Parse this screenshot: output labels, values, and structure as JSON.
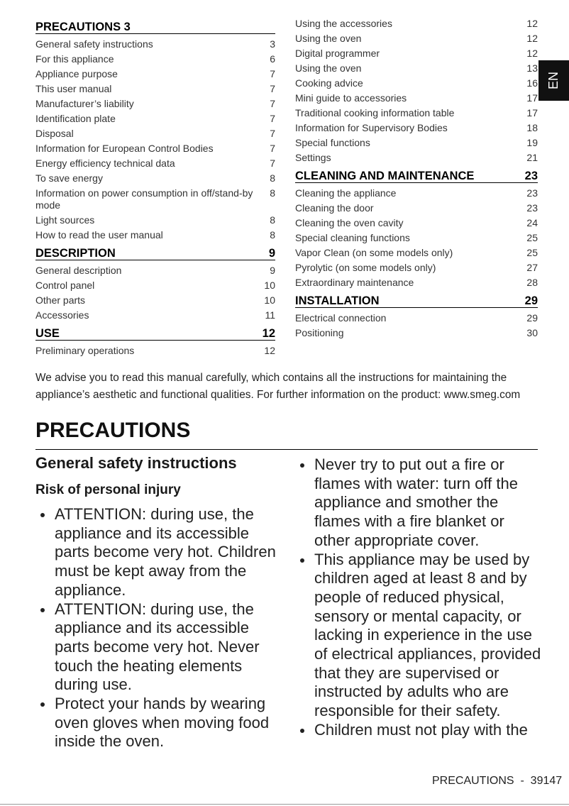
{
  "toc": {
    "columns": [
      {
        "items": [
          {
            "heading": "PRECAUTIONS 3"
          },
          {
            "text": "General safety instructions",
            "page": "3"
          },
          {
            "text": "For this appliance",
            "page": "6"
          },
          {
            "text": "Appliance purpose",
            "page": "7"
          },
          {
            "text": "This user manual",
            "page": "7"
          },
          {
            "text": "Manufacturer’s liability",
            "page": "7"
          },
          {
            "text": "Identification plate",
            "page": "7"
          },
          {
            "text": "Disposal",
            "page": "7"
          },
          {
            "text": "Information for European Control Bodies",
            "page": "7"
          },
          {
            "text": "Energy efficiency technical data",
            "page": "7"
          },
          {
            "text": "To save energy",
            "page": "8"
          },
          {
            "text": "Information on power consumption in off/stand-by mode",
            "page": "8"
          },
          {
            "text": "Light sources",
            "page": "8"
          },
          {
            "text": "How to read the user manual",
            "page": "8"
          },
          {
            "heading": "DESCRIPTION",
            "page": "9"
          },
          {
            "text": "General description",
            "page": "9"
          },
          {
            "text": "Control panel",
            "page": "10"
          },
          {
            "text": "Other parts",
            "page": "10"
          },
          {
            "text": "Accessories",
            "page": "11"
          },
          {
            "heading": "USE",
            "page": "12"
          },
          {
            "text": "Preliminary operations",
            "page": "12"
          }
        ]
      },
      {
        "items": [
          {
            "text": "Using the accessories",
            "page": "12"
          },
          {
            "text": "Using the oven",
            "page": "12"
          },
          {
            "text": "Digital programmer",
            "page": "12"
          },
          {
            "text": "Using the oven",
            "page": "13"
          },
          {
            "text": "Cooking advice",
            "page": "16"
          },
          {
            "text": "Mini guide to accessories",
            "page": "17"
          },
          {
            "text": "Traditional cooking information table",
            "page": "17"
          },
          {
            "text": "Information for Supervisory Bodies",
            "page": "18"
          },
          {
            "text": "Special functions",
            "page": "19"
          },
          {
            "text": "Settings",
            "page": "21"
          },
          {
            "heading": "CLEANING AND MAINTENANCE",
            "page": "23"
          },
          {
            "text": "Cleaning the appliance",
            "page": "23"
          },
          {
            "text": "Cleaning the door",
            "page": "23"
          },
          {
            "text": "Cleaning the oven cavity",
            "page": "24"
          },
          {
            "text": "Special cleaning functions",
            "page": "25"
          },
          {
            "text": "Vapor Clean (on some models only)",
            "page": "25"
          },
          {
            "text": "Pyrolytic (on some models only)",
            "page": "27"
          },
          {
            "text": "Extraordinary maintenance",
            "page": "28"
          },
          {
            "heading": "INSTALLATION",
            "page": "29"
          },
          {
            "text": "Electrical connection",
            "page": "29"
          },
          {
            "text": "Positioning",
            "page": "30"
          }
        ]
      }
    ]
  },
  "tab": "EN",
  "intro": "We advise you to read this manual carefully, which contains all the instructions for maintaining the appliance’s aesthetic and functional qualities. For further information on the product: www.smeg.com",
  "section": {
    "title": "PRECAUTIONS",
    "subtitle": "General safety instructions",
    "subsubtitle": "Risk of personal injury",
    "bullets_left": [
      "ATTENTION: during use, the appliance and its accessible parts become very hot. Children must be kept away from the appliance.",
      "ATTENTION: during use, the appliance and its accessible parts become very hot. Never touch the heating elements during use.",
      "Protect your hands by wearing oven gloves when moving food inside the oven."
    ],
    "bullets_right": [
      "Never try to put out a fire or flames with water: turn off the appliance and smother the flames with a fire blanket or other appropriate cover.",
      "This appliance may be used by children aged at least 8 and by people of reduced physical, sensory or mental capacity, or lacking in experience in the use of electrical appliances, provided that they are supervised or instructed by adults who are responsible for their safety.",
      "Children must not play with the"
    ]
  },
  "footer": "PRECAUTIONS  -  39147"
}
